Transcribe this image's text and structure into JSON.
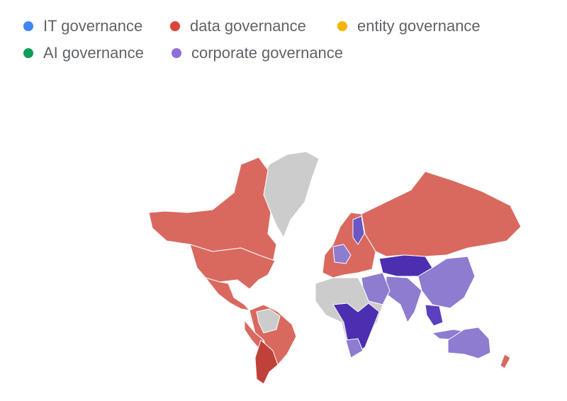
{
  "legend": [
    {
      "label": "IT governance",
      "color": "#4285f4"
    },
    {
      "label": "data governance",
      "color": "#db4437"
    },
    {
      "label": "entity governance",
      "color": "#f4b400"
    },
    {
      "label": "AI governance",
      "color": "#0f9d58"
    },
    {
      "label": "corporate governance",
      "color": "#8e6fd8"
    }
  ]
}
